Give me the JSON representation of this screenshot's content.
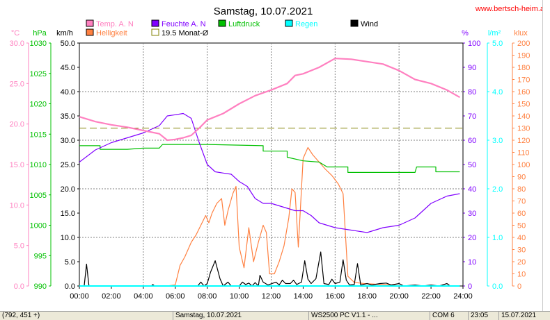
{
  "chart_data": {
    "type": "line",
    "title": "Samstag, 10.07.2021",
    "watermark": "www.bertsch-heim.at",
    "x_ticks": [
      "00:00",
      "02:00",
      "04:00",
      "06:00",
      "08:00",
      "10:00",
      "12:00",
      "14:00",
      "16:00",
      "18:00",
      "20:00",
      "22:00",
      "24:00"
    ],
    "x_range_hours": [
      0,
      24
    ],
    "legend": [
      {
        "label": "Temp. A. N",
        "color": "#ff80c0"
      },
      {
        "label": "Feuchte A. N",
        "color": "#8000ff"
      },
      {
        "label": "Luftdruck",
        "color": "#00c000"
      },
      {
        "label": "Regen",
        "color": "#00ffff"
      },
      {
        "label": "Wind",
        "color": "#000000"
      },
      {
        "label": "Helligkeit",
        "color": "#ff8040"
      },
      {
        "label": "19.5 Monat-Ø",
        "color": "#808000"
      }
    ],
    "axes": {
      "temp": {
        "unit": "°C",
        "color": "#ff80c0",
        "min": 0,
        "max": 30,
        "ticks": [
          "0.0",
          "5.0",
          "10.0",
          "15.0",
          "20.0",
          "25.0",
          "30.0"
        ]
      },
      "pressure": {
        "unit": "hPa",
        "color": "#00c000",
        "min": 990,
        "max": 1030,
        "ticks": [
          "990",
          "995",
          "1000",
          "1005",
          "1010",
          "1015",
          "1020",
          "1025",
          "1030"
        ]
      },
      "wind": {
        "unit": "km/h",
        "color": "#000000",
        "min": 0,
        "max": 50,
        "ticks": [
          "0.0",
          "5.0",
          "10.0",
          "15.0",
          "20.0",
          "25.0",
          "30.0",
          "35.0",
          "40.0",
          "45.0",
          "50.0"
        ]
      },
      "humidity": {
        "unit": "%",
        "color": "#8000ff",
        "min": 0,
        "max": 100,
        "ticks": [
          "0",
          "10",
          "20",
          "30",
          "40",
          "50",
          "60",
          "70",
          "80",
          "90",
          "100"
        ]
      },
      "rain": {
        "unit": "l/m²",
        "color": "#00ffff",
        "min": 0,
        "max": 5,
        "ticks": [
          "0.0",
          "1.0",
          "2.0",
          "3.0",
          "4.0",
          "5.0"
        ]
      },
      "light": {
        "unit": "klux",
        "color": "#ff8040",
        "min": 0,
        "max": 200,
        "ticks": [
          "0",
          "10",
          "20",
          "30",
          "40",
          "50",
          "60",
          "70",
          "80",
          "90",
          "100",
          "110",
          "120",
          "130",
          "140",
          "150",
          "160",
          "170",
          "180",
          "190",
          "200"
        ]
      }
    },
    "monthly_avg_temp": 19.5,
    "series": [
      {
        "name": "Temp. A. N",
        "axis": "temp",
        "color": "#ff80c0",
        "points": [
          [
            0,
            20.9
          ],
          [
            0.5,
            20.6
          ],
          [
            1,
            20.3
          ],
          [
            2,
            19.9
          ],
          [
            3,
            19.6
          ],
          [
            4,
            19.2
          ],
          [
            5,
            18.8
          ],
          [
            5.5,
            18.0
          ],
          [
            6,
            18.1
          ],
          [
            6.5,
            18.3
          ],
          [
            7,
            18.6
          ],
          [
            7.5,
            19.5
          ],
          [
            8,
            20.5
          ],
          [
            9,
            21.3
          ],
          [
            10,
            22.5
          ],
          [
            11,
            23.5
          ],
          [
            12,
            24.2
          ],
          [
            13,
            25.0
          ],
          [
            13.5,
            26.0
          ],
          [
            14,
            26.2
          ],
          [
            15,
            27.0
          ],
          [
            16,
            28.1
          ],
          [
            17,
            28.0
          ],
          [
            18,
            27.7
          ],
          [
            19,
            27.4
          ],
          [
            20,
            26.6
          ],
          [
            21,
            25.5
          ],
          [
            22,
            25.0
          ],
          [
            23,
            24.2
          ],
          [
            23.8,
            23.3
          ]
        ]
      },
      {
        "name": "Feuchte A. N",
        "axis": "humidity",
        "color": "#8000ff",
        "points": [
          [
            0,
            51
          ],
          [
            1,
            56
          ],
          [
            2,
            59
          ],
          [
            3,
            61
          ],
          [
            4,
            63
          ],
          [
            5,
            66
          ],
          [
            5.5,
            70
          ],
          [
            6,
            70.5
          ],
          [
            6.5,
            71
          ],
          [
            7,
            69
          ],
          [
            7.5,
            59
          ],
          [
            8,
            50
          ],
          [
            8.5,
            47
          ],
          [
            9,
            46.5
          ],
          [
            9.5,
            46
          ],
          [
            10,
            43
          ],
          [
            10.5,
            41
          ],
          [
            11,
            36
          ],
          [
            11.5,
            34
          ],
          [
            12,
            34
          ],
          [
            12.5,
            33
          ],
          [
            13,
            32
          ],
          [
            13.5,
            31
          ],
          [
            14,
            31
          ],
          [
            14.5,
            29
          ],
          [
            15,
            26
          ],
          [
            16,
            24
          ],
          [
            17,
            23
          ],
          [
            18,
            22
          ],
          [
            19,
            24
          ],
          [
            20,
            25
          ],
          [
            21,
            28
          ],
          [
            22,
            34
          ],
          [
            23,
            37
          ],
          [
            23.8,
            38
          ]
        ]
      },
      {
        "name": "Luftdruck",
        "axis": "pressure",
        "color": "#00c000",
        "points": [
          [
            0,
            1013.1
          ],
          [
            1.3,
            1013.1
          ],
          [
            1.3,
            1012.5
          ],
          [
            3,
            1012.5
          ],
          [
            4,
            1012.7
          ],
          [
            5,
            1012.7
          ],
          [
            5.2,
            1013.3
          ],
          [
            8,
            1013.3
          ],
          [
            11.5,
            1013.1
          ],
          [
            11.5,
            1012.2
          ],
          [
            13,
            1012.2
          ],
          [
            13,
            1011.2
          ],
          [
            14,
            1010.6
          ],
          [
            15,
            1010.4
          ],
          [
            15.5,
            1009.6
          ],
          [
            16.8,
            1009.6
          ],
          [
            16.8,
            1008.7
          ],
          [
            20,
            1008.7
          ],
          [
            21,
            1008.7
          ],
          [
            21.1,
            1009.6
          ],
          [
            22.3,
            1009.6
          ],
          [
            22.3,
            1008.8
          ],
          [
            23.8,
            1008.8
          ]
        ]
      },
      {
        "name": "Regen",
        "axis": "rain",
        "color": "#00ffff",
        "points": [
          [
            0,
            0
          ],
          [
            23.8,
            0
          ]
        ]
      },
      {
        "name": "Wind",
        "axis": "wind",
        "color": "#000000",
        "points": [
          [
            0,
            0
          ],
          [
            0.3,
            0
          ],
          [
            0.45,
            4.5
          ],
          [
            0.6,
            0
          ],
          [
            4.5,
            0
          ],
          [
            4.6,
            0.3
          ],
          [
            4.7,
            0
          ],
          [
            7.4,
            0
          ],
          [
            7.6,
            0.8
          ],
          [
            7.8,
            0
          ],
          [
            8,
            0.5
          ],
          [
            8.2,
            2.8
          ],
          [
            8.5,
            5.2
          ],
          [
            8.8,
            1.5
          ],
          [
            9,
            0
          ],
          [
            9.3,
            0.8
          ],
          [
            9.5,
            0
          ],
          [
            10,
            0
          ],
          [
            10.2,
            0.8
          ],
          [
            10.4,
            0.3
          ],
          [
            10.6,
            0.6
          ],
          [
            10.8,
            0
          ],
          [
            11,
            0.7
          ],
          [
            11.2,
            0
          ],
          [
            11.3,
            2.2
          ],
          [
            11.5,
            0.8
          ],
          [
            11.8,
            0.2
          ],
          [
            12.3,
            0.8
          ],
          [
            12.5,
            0.2
          ],
          [
            12.7,
            1.2
          ],
          [
            12.9,
            0.5
          ],
          [
            13.2,
            0.5
          ],
          [
            13.4,
            1.2
          ],
          [
            13.6,
            0.3
          ],
          [
            13.9,
            0.8
          ],
          [
            14.1,
            5.2
          ],
          [
            14.3,
            1.4
          ],
          [
            14.5,
            0.5
          ],
          [
            14.8,
            1.5
          ],
          [
            15.1,
            7.0
          ],
          [
            15.3,
            0.5
          ],
          [
            15.6,
            0.3
          ],
          [
            15.8,
            1.4
          ],
          [
            16,
            0.5
          ],
          [
            16.3,
            0.8
          ],
          [
            16.5,
            5.4
          ],
          [
            16.7,
            1.2
          ],
          [
            16.9,
            0.2
          ],
          [
            17.2,
            0.3
          ],
          [
            17.4,
            4.6
          ],
          [
            17.6,
            0.2
          ],
          [
            18,
            0.5
          ],
          [
            18.3,
            0.2
          ],
          [
            18.8,
            0.5
          ],
          [
            19.2,
            0.6
          ],
          [
            19.5,
            0.2
          ],
          [
            20,
            0.5
          ],
          [
            20.3,
            0
          ],
          [
            21,
            0.2
          ],
          [
            21.5,
            0
          ],
          [
            22,
            0.2
          ],
          [
            22.5,
            0
          ],
          [
            23,
            0.5
          ],
          [
            23.2,
            0
          ]
        ]
      },
      {
        "name": "Helligkeit",
        "axis": "light",
        "color": "#ff8040",
        "points": [
          [
            0,
            0
          ],
          [
            5.5,
            0
          ],
          [
            6,
            1
          ],
          [
            6.3,
            17
          ],
          [
            6.6,
            24
          ],
          [
            7,
            36
          ],
          [
            7.3,
            42
          ],
          [
            7.6,
            50
          ],
          [
            7.9,
            58
          ],
          [
            8.1,
            52
          ],
          [
            8.3,
            60
          ],
          [
            8.6,
            68
          ],
          [
            8.9,
            72
          ],
          [
            9.1,
            50
          ],
          [
            9.3,
            62
          ],
          [
            9.6,
            76
          ],
          [
            9.8,
            82
          ],
          [
            10,
            32
          ],
          [
            10.3,
            15
          ],
          [
            10.6,
            48
          ],
          [
            10.9,
            20
          ],
          [
            11.2,
            36
          ],
          [
            11.5,
            50
          ],
          [
            11.7,
            44
          ],
          [
            11.9,
            10
          ],
          [
            12.2,
            10
          ],
          [
            12.5,
            20
          ],
          [
            12.8,
            33
          ],
          [
            13.1,
            56
          ],
          [
            13.3,
            80
          ],
          [
            13.5,
            77
          ],
          [
            13.7,
            32
          ],
          [
            14,
            105
          ],
          [
            14.3,
            114
          ],
          [
            14.6,
            108
          ],
          [
            15,
            102
          ],
          [
            15.4,
            96
          ],
          [
            15.8,
            91
          ],
          [
            16.2,
            84
          ],
          [
            16.5,
            76
          ],
          [
            16.8,
            8
          ],
          [
            17.2,
            3
          ],
          [
            17.8,
            2
          ],
          [
            18.5,
            1.5
          ],
          [
            19.5,
            1
          ],
          [
            20,
            0
          ],
          [
            23.8,
            0
          ]
        ]
      }
    ]
  },
  "statusbar": [
    "(792, 451 +)",
    "Samstag, 10.07.2021",
    "WS2500 PC V1.1 - ...",
    "COM 6",
    "23:05",
    "15.07.2021"
  ]
}
